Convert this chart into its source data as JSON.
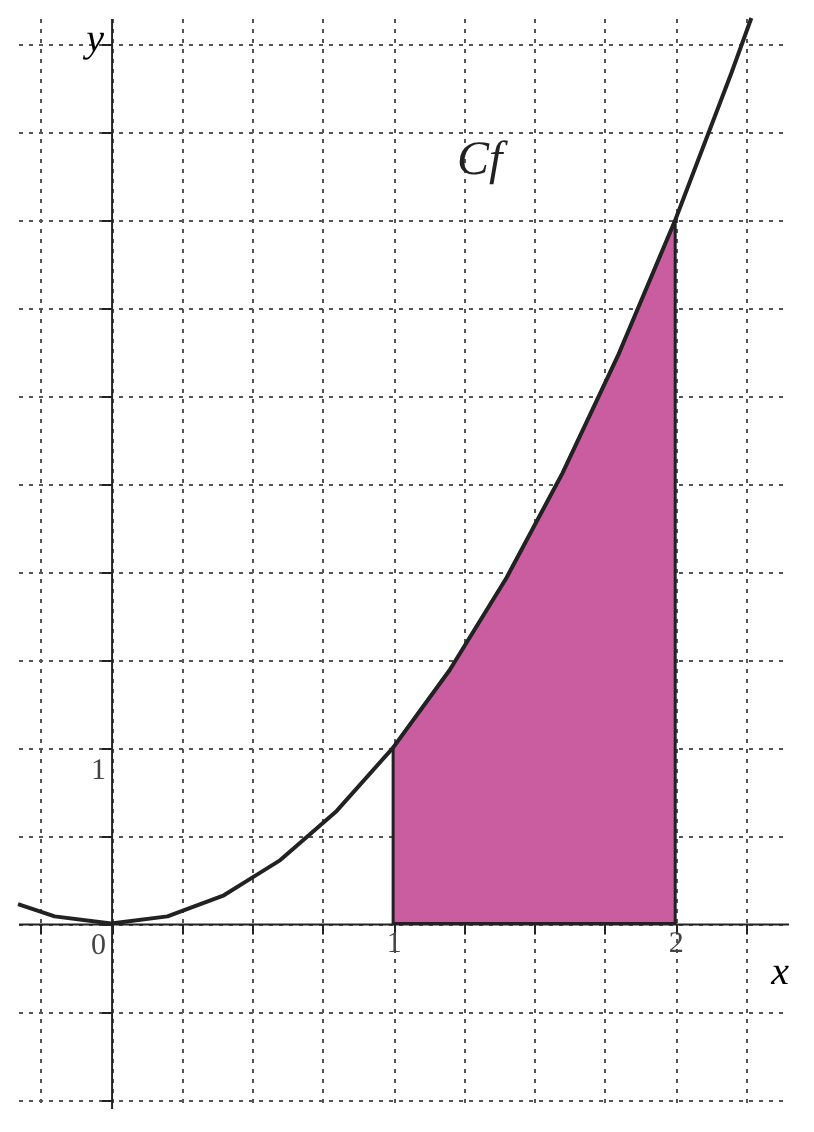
{
  "chart_data": {
    "type": "line",
    "xlabel": "x",
    "ylabel": "y",
    "xlim": [
      -0.33,
      2.4
    ],
    "ylim": [
      -1.05,
      5.15
    ],
    "xticks": [
      {
        "value": -0.25,
        "label": null
      },
      {
        "value": 0,
        "label": null
      },
      {
        "value": 0.25,
        "label": null
      },
      {
        "value": 0.5,
        "label": null
      },
      {
        "value": 0.75,
        "label": null
      },
      1,
      {
        "value": 1.25,
        "label": null
      },
      {
        "value": 1.5,
        "label": null
      },
      {
        "value": 1.75,
        "label": null
      },
      2,
      {
        "value": 2.25,
        "label": null
      }
    ],
    "yticks": [
      {
        "value": -1,
        "label": null
      },
      {
        "value": -0.5,
        "label": null
      },
      0,
      {
        "value": 0.5,
        "label": null
      },
      1,
      {
        "value": 1.5,
        "label": null
      },
      {
        "value": 2,
        "label": null
      },
      {
        "value": 2.5,
        "label": null
      },
      {
        "value": 3,
        "label": null
      },
      {
        "value": 3.5,
        "label": null
      },
      {
        "value": 4,
        "label": null
      },
      {
        "value": 4.5,
        "label": null
      },
      {
        "value": 5,
        "label": null
      }
    ],
    "grid": true,
    "line_style": "solid",
    "marker": "none",
    "series": [
      {
        "type": "area",
        "color": "#c95da0",
        "x": [
          1,
          1.2,
          1.4,
          1.6,
          1.8,
          2
        ],
        "values": [
          1,
          1.44,
          1.96,
          2.56,
          3.24,
          4
        ]
      },
      {
        "type": "line",
        "color": "#222222",
        "x": [
          -0.33,
          -0.2,
          0,
          0.2,
          0.4,
          0.6,
          0.8,
          1,
          1.2,
          1.4,
          1.6,
          1.8,
          2,
          2.2,
          2.27
        ],
        "values": [
          0.11,
          0.04,
          0,
          0.04,
          0.16,
          0.36,
          0.64,
          1,
          1.44,
          1.96,
          2.56,
          3.24,
          4,
          4.84,
          5.15
        ]
      }
    ],
    "annotations": [
      "Cf"
    ]
  }
}
